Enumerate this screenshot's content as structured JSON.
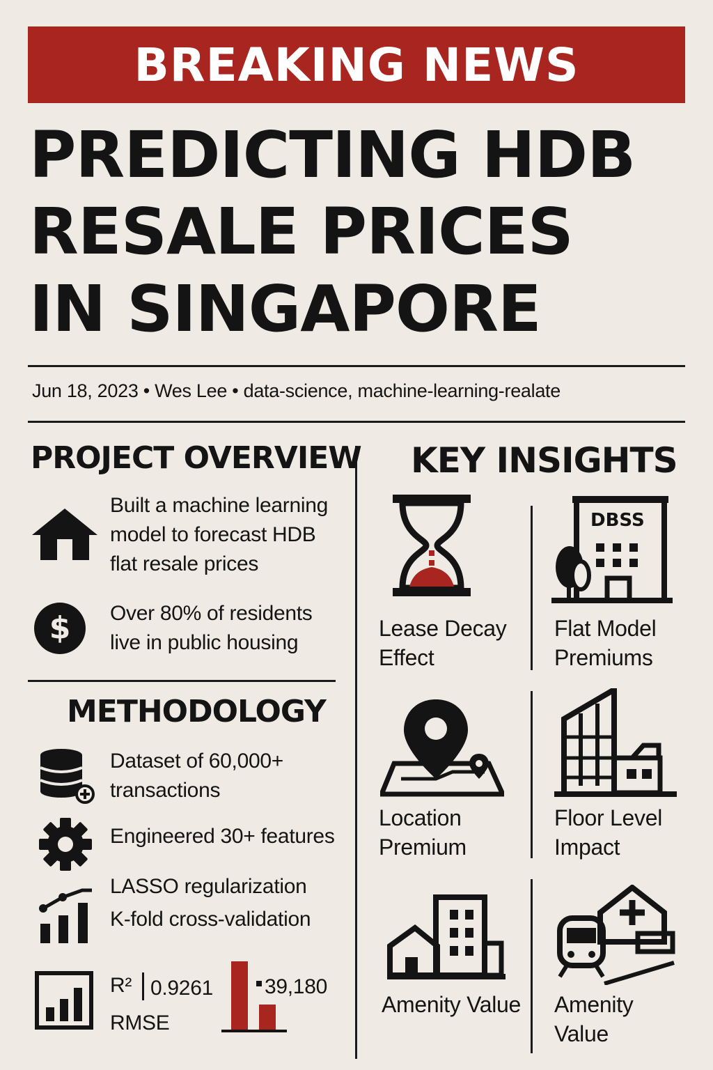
{
  "banner": {
    "label": "BREAKING NEWS"
  },
  "headline": {
    "line1": "PREDICTING HDB",
    "line2": "RESALE PRICES",
    "line3": "IN SINGAPORE"
  },
  "meta": {
    "text": "Jun 18, 2023 • Wes Lee • data-science, machine-learning-realate"
  },
  "overview": {
    "title": "PROJECT OVERVIEW",
    "items": [
      {
        "icon": "house-icon",
        "line1": "Built a machine learning",
        "line2": "model to forecast HDB",
        "line3": "flat resale prices"
      },
      {
        "icon": "dollar-icon",
        "line1": "Over 80% of residents",
        "line2": "live in public housing"
      }
    ]
  },
  "methodology": {
    "title": "METHODOLOGY",
    "items": [
      {
        "icon": "database-icon",
        "line1": "Dataset of 60,000+",
        "line2": "transactions"
      },
      {
        "icon": "gear-icon",
        "line1": "Engineered 30+ features"
      },
      {
        "icon": "trend-chart-icon",
        "line1": "LASSO regularization",
        "line2": "K-fold cross-validation"
      }
    ],
    "metrics": {
      "r2_label": "R²",
      "r2_value": "0.9261",
      "rmse_label": "RMSE",
      "rmse_value": "39,180"
    }
  },
  "insights": {
    "title": "KEY INSIGHTS",
    "items": [
      {
        "icon": "hourglass-icon",
        "line1": "Lease Decay",
        "line2": "Effect"
      },
      {
        "icon": "dbss-building-icon",
        "sign": "DBSS",
        "line1": "Flat Model",
        "line2": "Premiums"
      },
      {
        "icon": "location-pin-icon",
        "line1": "Location",
        "line2": "Premium"
      },
      {
        "icon": "highrise-icon",
        "line1": "Floor Level",
        "line2": "Impact"
      },
      {
        "icon": "neighborhood-icon",
        "line1": "Amenity Value"
      },
      {
        "icon": "train-hospital-icon",
        "line1": "Amenity",
        "line2": "Value"
      }
    ]
  },
  "colors": {
    "accent": "#a8261f",
    "ink": "#141414",
    "paper": "#efebe4"
  }
}
